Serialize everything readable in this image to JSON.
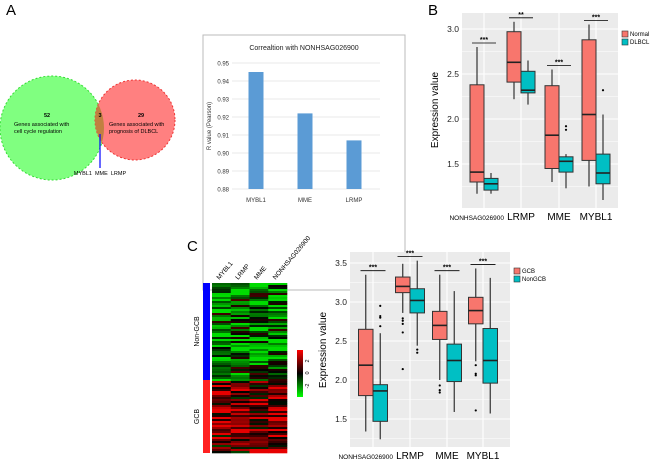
{
  "panels": {
    "a": "A",
    "b": "B",
    "c": "C"
  },
  "venn": {
    "left_count": "52",
    "left_label_1": "Genes associated with",
    "left_label_2": "cell cycle regulation",
    "right_count": "29",
    "right_label_1": "Genes associated with",
    "right_label_2": "prognosis of DLBCL",
    "overlap_count": "3",
    "overlap_genes": "MYBL1  MME  LRMP",
    "colors": {
      "left": "#80ff80",
      "right": "#ff8080",
      "overlap": "#c08040"
    }
  },
  "chart_data": [
    {
      "type": "bar",
      "title": "Correaltion with NONHSAG026900",
      "ylabel": "R value (Pearson)",
      "categories": [
        "MYBL1",
        "MME",
        "LRMP"
      ],
      "values": [
        0.945,
        0.922,
        0.907
      ],
      "ylim": [
        0.88,
        0.95
      ],
      "yticks": [
        "0.88",
        "0.89",
        "0.90",
        "0.91",
        "0.92",
        "0.93",
        "0.94",
        "0.95"
      ],
      "grid": true,
      "color": "#5b9bd5"
    },
    {
      "type": "boxplot",
      "ylabel": "Expression value",
      "categories": [
        "NONHSAG026900",
        "LRMP",
        "MME",
        "MYBL1"
      ],
      "yticks": [
        "1.5",
        "2.0",
        "2.5",
        "3.0"
      ],
      "ylim": [
        1.0,
        3.18
      ],
      "significance": [
        "***",
        "**",
        "***",
        "***"
      ],
      "legend_position": "right",
      "series": [
        {
          "name": "Normal",
          "color": "#f8766d",
          "boxes": [
            {
              "low": 1.17,
              "q1": 1.3,
              "median": 1.41,
              "q3": 2.38,
              "high": 2.8,
              "outliers": []
            },
            {
              "low": 2.22,
              "q1": 2.41,
              "median": 2.63,
              "q3": 2.97,
              "high": 3.08,
              "outliers": []
            },
            {
              "low": 1.3,
              "q1": 1.45,
              "median": 1.82,
              "q3": 2.37,
              "high": 2.55,
              "outliers": []
            },
            {
              "low": 1.25,
              "q1": 1.54,
              "median": 2.05,
              "q3": 2.88,
              "high": 3.05,
              "outliers": []
            }
          ]
        },
        {
          "name": "DLBCL",
          "color": "#00bfc4",
          "boxes": [
            {
              "low": 1.17,
              "q1": 1.21,
              "median": 1.28,
              "q3": 1.34,
              "high": 1.4,
              "outliers": []
            },
            {
              "low": 2.16,
              "q1": 2.29,
              "median": 2.32,
              "q3": 2.53,
              "high": 2.65,
              "outliers": []
            },
            {
              "low": 1.23,
              "q1": 1.41,
              "median": 1.53,
              "q3": 1.58,
              "high": 1.61,
              "outliers": [
                1.88,
                1.92
              ]
            },
            {
              "low": 1.1,
              "q1": 1.28,
              "median": 1.4,
              "q3": 1.61,
              "high": 2.05,
              "outliers": [
                2.32
              ]
            }
          ]
        }
      ]
    },
    {
      "type": "heatmap",
      "columns": [
        "MYBL1",
        "LRMP",
        "MME",
        "NONHSAG026900"
      ],
      "row_groups": [
        {
          "name": "Non-GCB",
          "color": "#0000ff"
        },
        {
          "name": "GCB",
          "color": "#ff2020"
        }
      ],
      "colorbar": {
        "ticks": [
          "2",
          "0",
          "-2"
        ],
        "colors": [
          "#ff0000",
          "#000000",
          "#00ff00"
        ]
      }
    },
    {
      "type": "boxplot",
      "ylabel": "Expression value",
      "categories": [
        "NONHSAG026900",
        "LRMP",
        "MME",
        "MYBL1"
      ],
      "yticks": [
        "1.5",
        "2.0",
        "2.5",
        "3.0",
        "3.5"
      ],
      "ylim": [
        1.14,
        3.64
      ],
      "significance": [
        "***",
        "***",
        "***",
        "***"
      ],
      "legend_position": "right",
      "series": [
        {
          "name": "GCB",
          "color": "#f8766d",
          "boxes": [
            {
              "low": 1.34,
              "q1": 1.8,
              "median": 2.19,
              "q3": 2.65,
              "high": 3.35,
              "outliers": []
            },
            {
              "low": 2.86,
              "q1": 3.12,
              "median": 3.2,
              "q3": 3.32,
              "high": 3.49,
              "outliers": [
                2.14,
                2.61,
                2.72,
                2.76,
                2.79
              ]
            },
            {
              "low": 2.0,
              "q1": 2.52,
              "median": 2.7,
              "q3": 2.88,
              "high": 3.35,
              "outliers": [
                1.84,
                1.87,
                1.93
              ]
            },
            {
              "low": 2.24,
              "q1": 2.72,
              "median": 2.89,
              "q3": 3.06,
              "high": 3.43,
              "outliers": [
                1.61,
                2.06,
                2.08,
                2.19
              ]
            }
          ]
        },
        {
          "name": "NonGCB",
          "color": "#00bfc4",
          "boxes": [
            {
              "low": 1.24,
              "q1": 1.47,
              "median": 1.86,
              "q3": 1.94,
              "high": 2.6,
              "outliers": [
                2.69,
                2.8,
                2.82,
                2.95
              ]
            },
            {
              "low": 2.44,
              "q1": 2.86,
              "median": 3.02,
              "q3": 3.17,
              "high": 3.53,
              "outliers": [
                2.35,
                2.39
              ]
            },
            {
              "low": 1.59,
              "q1": 1.98,
              "median": 2.25,
              "q3": 2.46,
              "high": 3.14,
              "outliers": []
            },
            {
              "low": 1.57,
              "q1": 1.96,
              "median": 2.25,
              "q3": 2.66,
              "high": 3.31,
              "outliers": []
            }
          ]
        }
      ]
    }
  ]
}
